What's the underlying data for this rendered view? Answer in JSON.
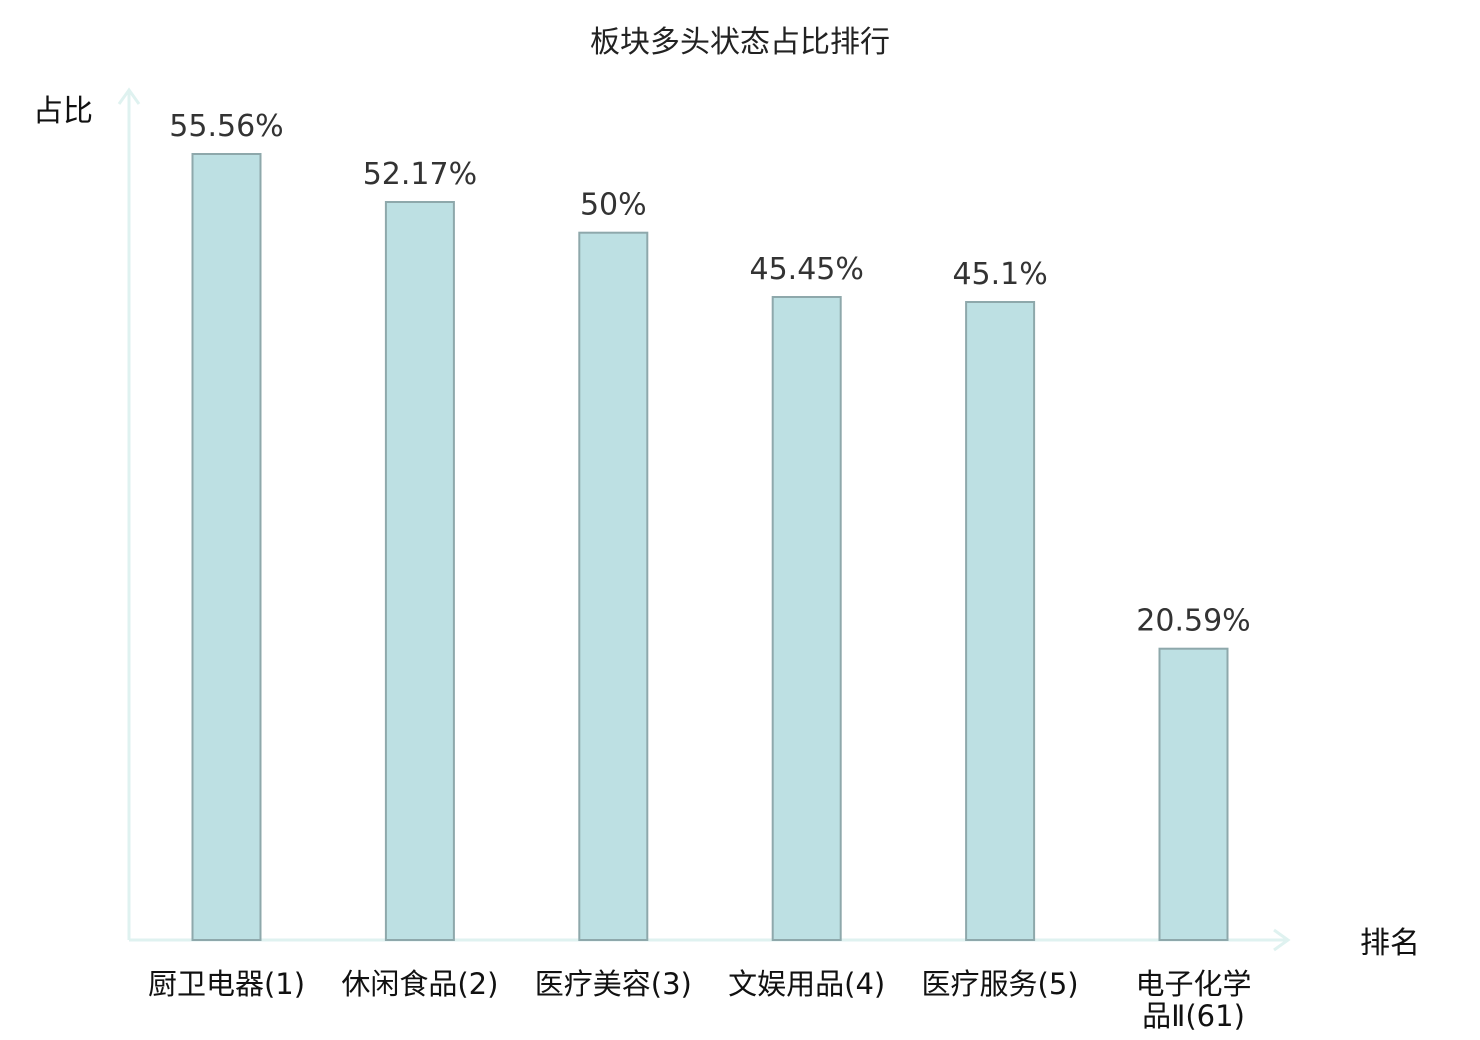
{
  "chart_data": {
    "type": "bar",
    "title": "板块多头状态占比排行",
    "ylabel": "占比",
    "xlabel": "排名",
    "categories": [
      [
        "厨卫电器(1)"
      ],
      [
        "休闲食品(2)"
      ],
      [
        "医疗美容(3)"
      ],
      [
        "文娱用品(4)"
      ],
      [
        "医疗服务(5)"
      ],
      [
        "电子化学",
        "品Ⅱ(61)"
      ]
    ],
    "values": [
      55.56,
      52.17,
      50,
      45.45,
      45.1,
      20.59
    ],
    "value_labels": [
      "55.56%",
      "52.17%",
      "50%",
      "45.45%",
      "45.1%",
      "20.59%"
    ],
    "highlight_index": 5,
    "ylim": [
      0,
      60
    ],
    "grid": false,
    "colors": {
      "bar_fill": "#bde0e3",
      "bar_stroke": "#8ea8ab",
      "axis": "#dff2f0",
      "highlight_label": "#e60000",
      "label": "#111111",
      "value_label": "#333333"
    }
  }
}
